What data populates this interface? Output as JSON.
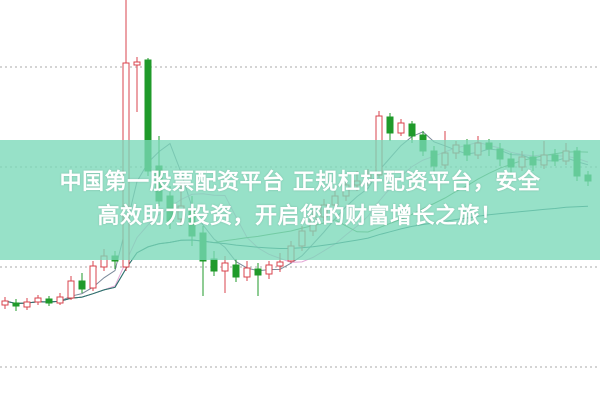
{
  "banner": {
    "line1": "中国第一股票配资平台 正规杠杆配资平台，安全",
    "line2": "高效助力投资，开启您的财富增长之旅！"
  },
  "chart_data": {
    "type": "candlestick",
    "title": "",
    "xlabel": "",
    "ylabel": "",
    "ylim": [
      0,
      40.1
    ],
    "grid": {
      "horizontal": true,
      "style": "dotted",
      "levels": [
        33.4,
        23.4,
        13.4,
        3.4
      ]
    },
    "colors": {
      "up": "#d9434c",
      "down": "#1f9a2a",
      "ma5": "#7b8a9a",
      "ma10": "#e4a6d6",
      "ma20": "#5b9a5b",
      "ma60": "#2e6f74",
      "grid": "#aaaaaa"
    },
    "moving_averages": [
      5,
      10,
      20,
      60
    ],
    "candles_ochl": [
      [
        9.6,
        10.0,
        10.4,
        9.2
      ],
      [
        9.8,
        9.5,
        10.2,
        9.0
      ],
      [
        9.4,
        9.9,
        10.3,
        9.1
      ],
      [
        9.9,
        10.3,
        10.6,
        9.6
      ],
      [
        10.2,
        9.8,
        10.5,
        9.5
      ],
      [
        9.8,
        10.4,
        10.8,
        9.6
      ],
      [
        10.3,
        12.0,
        12.5,
        10.1
      ],
      [
        12.0,
        11.2,
        12.8,
        10.8
      ],
      [
        11.3,
        13.5,
        14.0,
        11.0
      ],
      [
        13.4,
        14.5,
        15.2,
        13.0
      ],
      [
        14.5,
        14.0,
        15.0,
        13.2
      ],
      [
        13.4,
        33.8,
        40.1,
        13.0
      ],
      [
        33.6,
        33.9,
        34.4,
        28.9
      ],
      [
        34.1,
        23.0,
        34.3,
        22.5
      ],
      [
        23.5,
        20.0,
        26.5,
        19.5
      ],
      [
        20.5,
        18.0,
        21.5,
        17.2
      ],
      [
        18.2,
        19.5,
        22.0,
        17.5
      ],
      [
        19.0,
        16.5,
        20.5,
        15.5
      ],
      [
        16.8,
        14.0,
        17.5,
        10.5
      ],
      [
        14.2,
        13.0,
        15.0,
        12.5
      ],
      [
        13.0,
        13.8,
        14.5,
        10.8
      ],
      [
        13.6,
        12.4,
        14.2,
        11.9
      ],
      [
        12.4,
        13.3,
        14.0,
        12.0
      ],
      [
        13.2,
        12.6,
        13.8,
        10.5
      ],
      [
        12.7,
        13.6,
        14.0,
        12.2
      ],
      [
        13.5,
        13.9,
        14.8,
        12.9
      ],
      [
        14.0,
        15.5,
        16.0,
        13.8
      ],
      [
        15.5,
        17.0,
        17.5,
        15.0
      ],
      [
        17.0,
        18.5,
        19.0,
        16.5
      ],
      [
        18.4,
        19.6,
        20.2,
        18.0
      ],
      [
        19.6,
        20.5,
        21.0,
        19.0
      ],
      [
        20.5,
        21.6,
        22.2,
        20.0
      ],
      [
        21.6,
        22.0,
        23.0,
        21.0
      ],
      [
        22.0,
        22.6,
        23.2,
        21.5
      ],
      [
        22.6,
        28.5,
        29.0,
        22.3
      ],
      [
        28.4,
        26.8,
        28.8,
        26.0
      ],
      [
        26.8,
        27.8,
        28.2,
        26.5
      ],
      [
        27.7,
        26.5,
        28.0,
        25.8
      ],
      [
        26.6,
        25.0,
        27.0,
        24.5
      ],
      [
        25.0,
        23.5,
        25.5,
        22.8
      ],
      [
        23.6,
        24.8,
        27.0,
        23.2
      ],
      [
        24.8,
        25.6,
        26.0,
        24.2
      ],
      [
        25.6,
        24.6,
        26.2,
        24.0
      ],
      [
        24.6,
        25.8,
        26.5,
        24.2
      ],
      [
        25.8,
        25.2,
        26.2,
        24.5
      ],
      [
        25.2,
        24.2,
        25.8,
        23.5
      ],
      [
        24.2,
        23.4,
        24.8,
        22.8
      ],
      [
        23.4,
        24.4,
        25.0,
        23.0
      ],
      [
        24.4,
        23.6,
        25.0,
        23.0
      ],
      [
        23.6,
        24.6,
        26.0,
        23.2
      ],
      [
        24.6,
        24.0,
        25.2,
        23.5
      ],
      [
        24.0,
        25.0,
        25.8,
        23.6
      ],
      [
        25.0,
        22.5,
        25.4,
        22.0
      ],
      [
        22.6,
        22.0,
        23.0,
        21.5
      ]
    ]
  }
}
